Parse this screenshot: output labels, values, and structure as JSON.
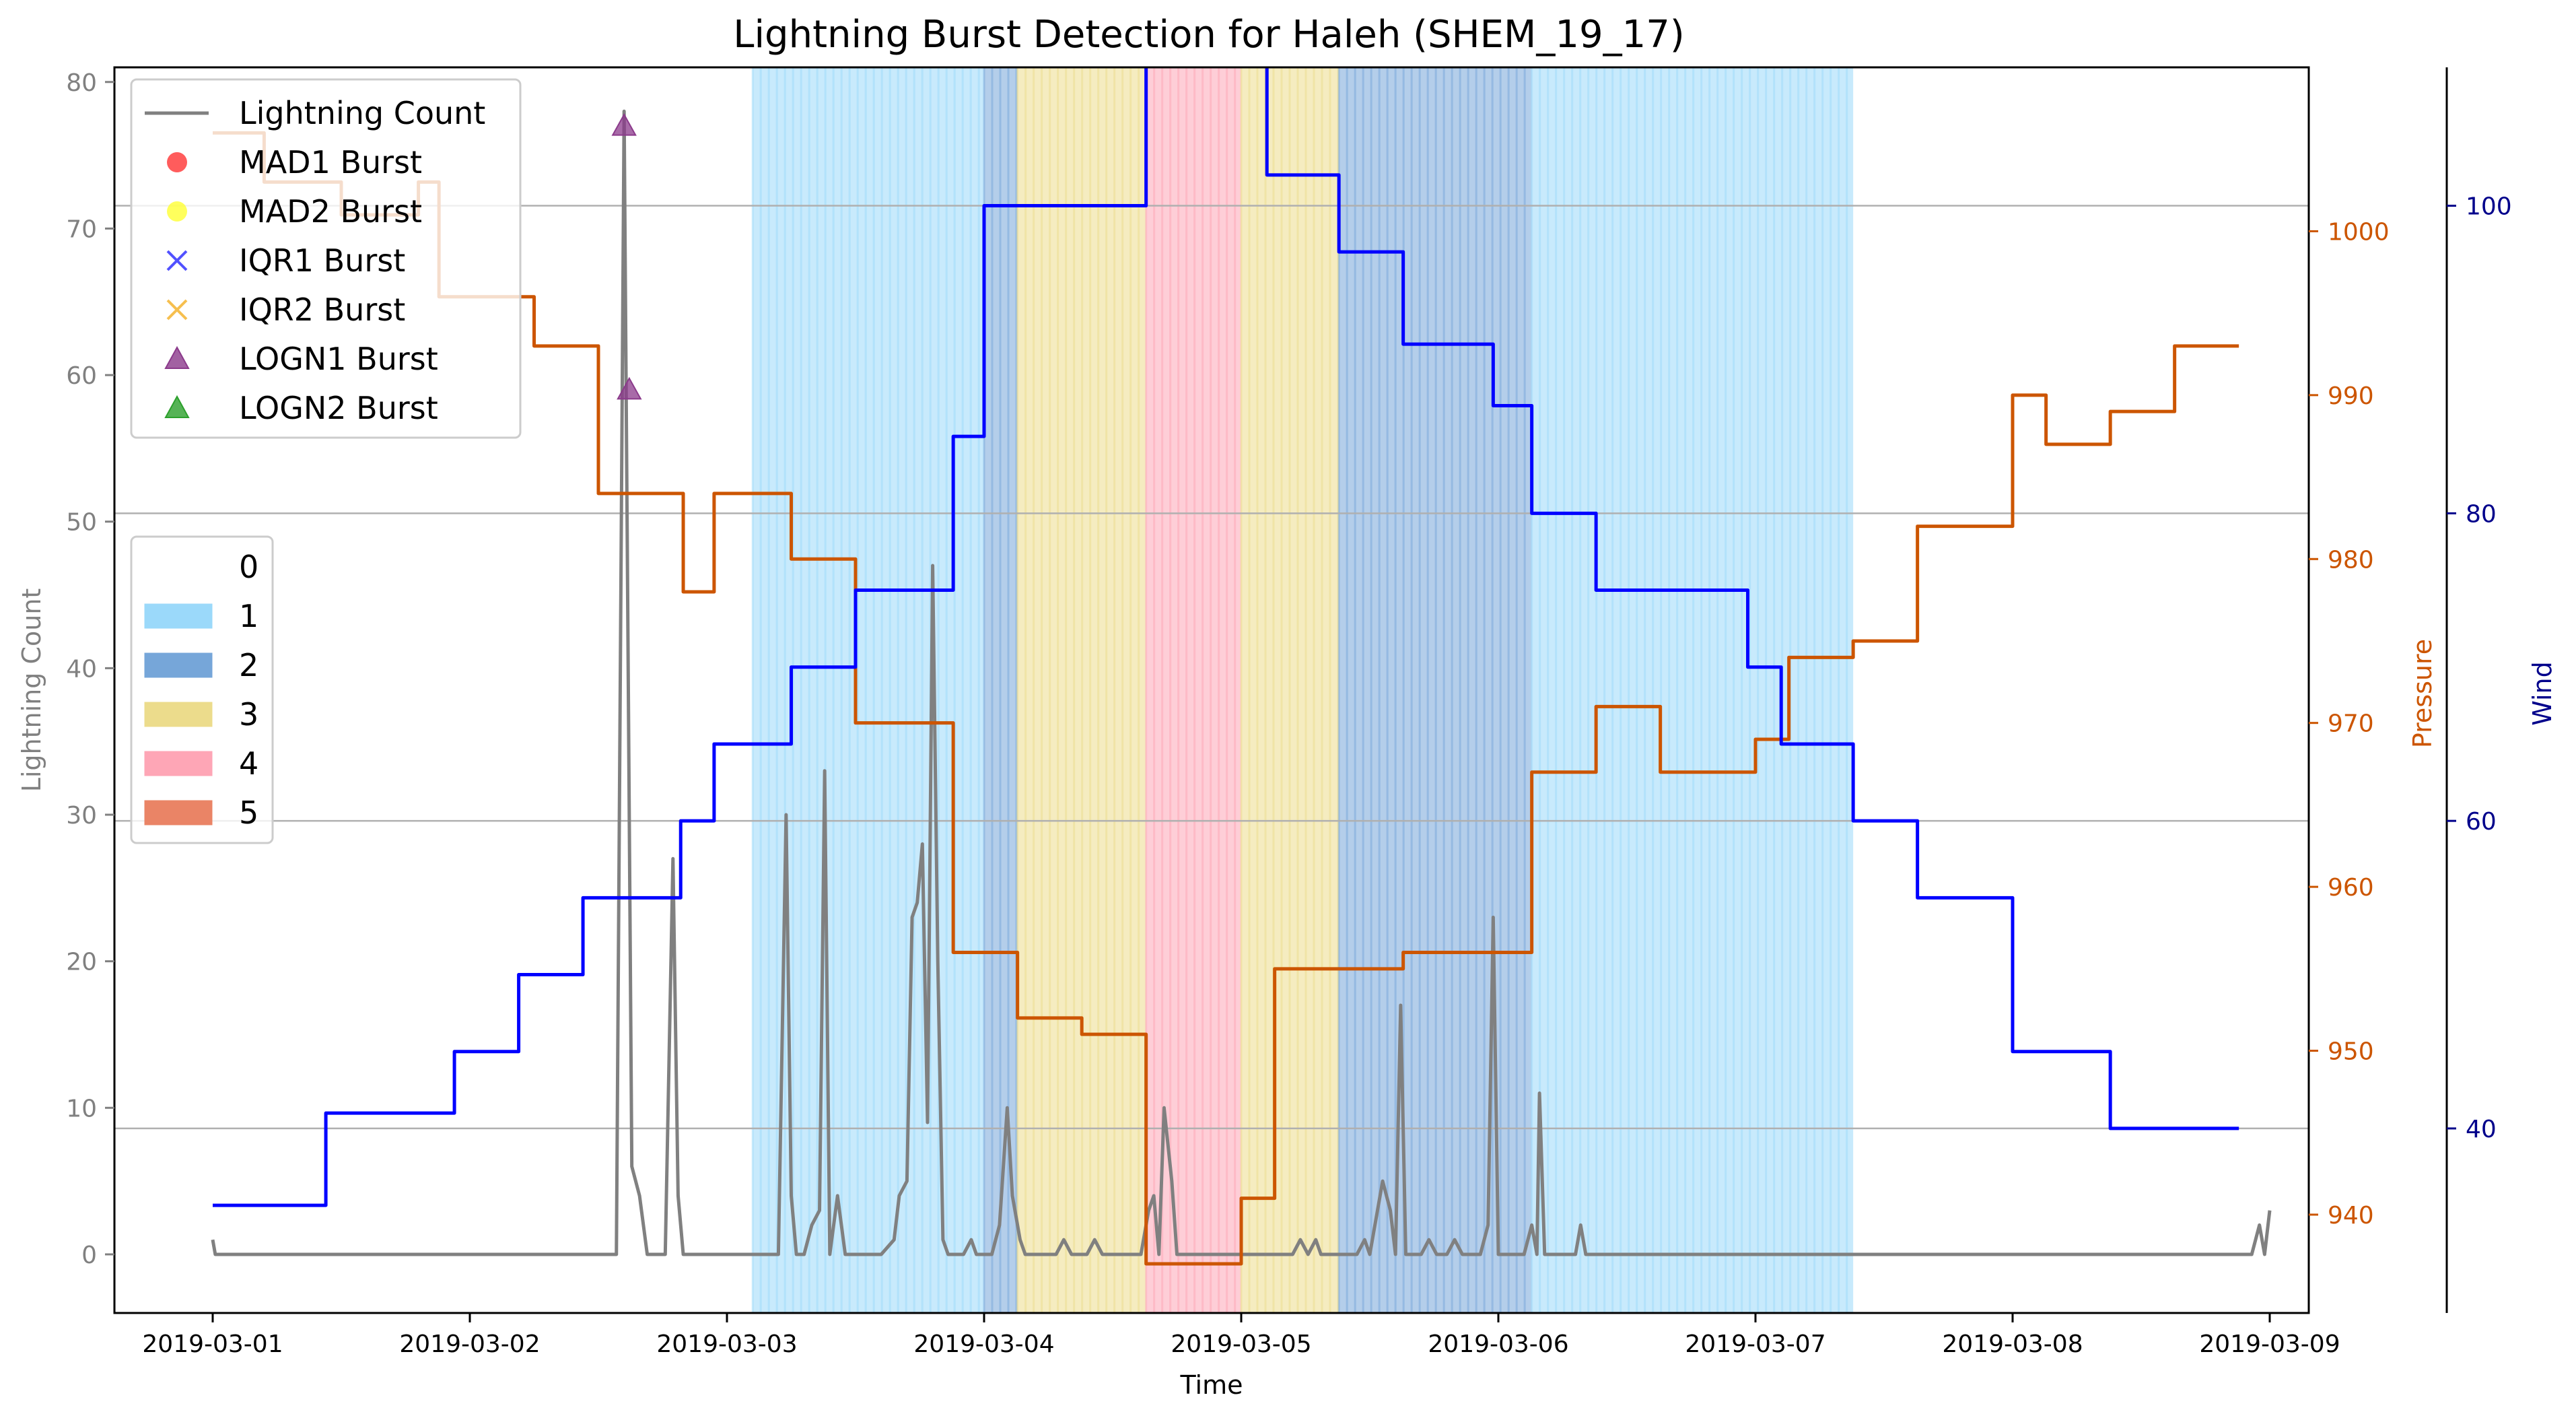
{
  "chart_data": {
    "type": "line",
    "title": "Lightning Burst Detection for Haleh (SHEM_19_17)",
    "xlabel": "Time",
    "x_ticks": [
      "2019-03-01",
      "2019-03-02",
      "2019-03-03",
      "2019-03-04",
      "2019-03-05",
      "2019-03-06",
      "2019-03-07",
      "2019-03-08",
      "2019-03-09"
    ],
    "axes": {
      "left": {
        "label": "Lightning Count",
        "ylim": [
          -4,
          81
        ],
        "ticks": [
          0,
          10,
          20,
          30,
          40,
          50,
          60,
          70,
          80
        ],
        "color": "#808080"
      },
      "pressure": {
        "label": "Pressure",
        "ylim": [
          934,
          1010
        ],
        "ticks": [
          940,
          950,
          960,
          970,
          980,
          990,
          1000
        ],
        "color": "#cc5500"
      },
      "wind": {
        "label": "Wind",
        "ylim": [
          28,
          109
        ],
        "ticks": [
          40,
          60,
          80,
          100
        ],
        "color": "#00008b"
      }
    },
    "grid_wind_levels": [
      40,
      60,
      80,
      100
    ],
    "category_bands": [
      {
        "start": 2.1,
        "end": 3.0,
        "category": 1
      },
      {
        "start": 3.0,
        "end": 3.13,
        "category": 2
      },
      {
        "start": 3.13,
        "end": 3.63,
        "category": 3
      },
      {
        "start": 3.63,
        "end": 4.0,
        "category": 4
      },
      {
        "start": 4.0,
        "end": 4.38,
        "category": 3
      },
      {
        "start": 4.38,
        "end": 5.13,
        "category": 2
      },
      {
        "start": 5.13,
        "end": 6.38,
        "category": 1
      }
    ],
    "category_colors": {
      "1": "#9bd9fa",
      "2": "#76a6d9",
      "3": "#ecdc8c",
      "4": "#fea6b6",
      "5": "#ea8466"
    },
    "legend_categories": {
      "placement": "center-left",
      "items": [
        {
          "label": "0",
          "color": "#ffffff"
        },
        {
          "label": "1",
          "color": "#9bd9fa"
        },
        {
          "label": "2",
          "color": "#76a6d9"
        },
        {
          "label": "3",
          "color": "#ecdc8c"
        },
        {
          "label": "4",
          "color": "#fea6b6"
        },
        {
          "label": "5",
          "color": "#ea8466"
        }
      ]
    },
    "legend_series": {
      "placement": "upper-left",
      "items": [
        {
          "label": "Lightning Count",
          "marker": "line",
          "color": "#808080"
        },
        {
          "label": "MAD1 Burst",
          "marker": "circle",
          "color": "#ff3333"
        },
        {
          "label": "MAD2 Burst",
          "marker": "circle",
          "color": "#ffff33"
        },
        {
          "label": "IQR1 Burst",
          "marker": "x",
          "color": "#3333ff"
        },
        {
          "label": "IQR2 Burst",
          "marker": "x",
          "color": "#f5b430"
        },
        {
          "label": "LOGN1 Burst",
          "marker": "triangle",
          "color": "#8b3a8b"
        },
        {
          "label": "LOGN2 Burst",
          "marker": "triangle",
          "color": "#2ca02c"
        }
      ]
    },
    "series": [
      {
        "id": "lightning",
        "axis": "left",
        "color": "#808080",
        "style": "line",
        "points": [
          [
            0.0,
            1
          ],
          [
            0.01,
            0
          ],
          [
            1.5,
            0
          ],
          [
            1.57,
            0
          ],
          [
            1.6,
            78
          ],
          [
            1.63,
            6
          ],
          [
            1.66,
            4
          ],
          [
            1.69,
            0
          ],
          [
            1.76,
            0
          ],
          [
            1.79,
            27
          ],
          [
            1.81,
            4
          ],
          [
            1.83,
            0
          ],
          [
            2.2,
            0
          ],
          [
            2.23,
            30
          ],
          [
            2.25,
            4
          ],
          [
            2.27,
            0
          ],
          [
            2.3,
            0
          ],
          [
            2.33,
            2
          ],
          [
            2.36,
            3
          ],
          [
            2.38,
            33
          ],
          [
            2.4,
            0
          ],
          [
            2.43,
            4
          ],
          [
            2.46,
            0
          ],
          [
            2.6,
            0
          ],
          [
            2.65,
            1
          ],
          [
            2.67,
            4
          ],
          [
            2.7,
            5
          ],
          [
            2.72,
            23
          ],
          [
            2.74,
            24
          ],
          [
            2.76,
            28
          ],
          [
            2.78,
            9
          ],
          [
            2.8,
            47
          ],
          [
            2.82,
            20
          ],
          [
            2.84,
            1
          ],
          [
            2.86,
            0
          ],
          [
            2.92,
            0
          ],
          [
            2.95,
            1
          ],
          [
            2.97,
            0
          ],
          [
            3.03,
            0
          ],
          [
            3.06,
            2
          ],
          [
            3.09,
            10
          ],
          [
            3.11,
            4
          ],
          [
            3.14,
            1
          ],
          [
            3.16,
            0
          ],
          [
            3.28,
            0
          ],
          [
            3.31,
            1
          ],
          [
            3.34,
            0
          ],
          [
            3.4,
            0
          ],
          [
            3.43,
            1
          ],
          [
            3.46,
            0
          ],
          [
            3.61,
            0
          ],
          [
            3.64,
            3
          ],
          [
            3.66,
            4
          ],
          [
            3.68,
            0
          ],
          [
            3.7,
            10
          ],
          [
            3.73,
            5
          ],
          [
            3.75,
            0
          ],
          [
            4.0,
            0
          ],
          [
            4.2,
            0
          ],
          [
            4.23,
            1
          ],
          [
            4.26,
            0
          ],
          [
            4.29,
            1
          ],
          [
            4.31,
            0
          ],
          [
            4.45,
            0
          ],
          [
            4.48,
            1
          ],
          [
            4.5,
            0
          ],
          [
            4.53,
            3
          ],
          [
            4.55,
            5
          ],
          [
            4.58,
            3
          ],
          [
            4.6,
            0
          ],
          [
            4.62,
            17
          ],
          [
            4.64,
            0
          ],
          [
            4.7,
            0
          ],
          [
            4.73,
            1
          ],
          [
            4.76,
            0
          ],
          [
            4.8,
            0
          ],
          [
            4.83,
            1
          ],
          [
            4.86,
            0
          ],
          [
            4.93,
            0
          ],
          [
            4.96,
            2
          ],
          [
            4.98,
            23
          ],
          [
            5.0,
            0
          ],
          [
            5.1,
            0
          ],
          [
            5.13,
            2
          ],
          [
            5.15,
            0
          ],
          [
            5.16,
            11
          ],
          [
            5.18,
            0
          ],
          [
            5.3,
            0
          ],
          [
            5.32,
            2
          ],
          [
            5.34,
            0
          ],
          [
            7.93,
            0
          ],
          [
            7.96,
            2
          ],
          [
            7.98,
            0
          ],
          [
            8.0,
            3
          ]
        ]
      },
      {
        "id": "pressure",
        "axis": "pressure",
        "color": "#cc5500",
        "style": "step",
        "points": [
          [
            0.0,
            1006
          ],
          [
            0.2,
            1003
          ],
          [
            0.5,
            1001
          ],
          [
            0.8,
            1003
          ],
          [
            0.88,
            996
          ],
          [
            1.25,
            993
          ],
          [
            1.5,
            984
          ],
          [
            1.83,
            978
          ],
          [
            1.95,
            984
          ],
          [
            2.25,
            980
          ],
          [
            2.5,
            970
          ],
          [
            2.88,
            956
          ],
          [
            3.13,
            952
          ],
          [
            3.38,
            951
          ],
          [
            3.63,
            937
          ],
          [
            4.0,
            941
          ],
          [
            4.13,
            955
          ],
          [
            4.63,
            956
          ],
          [
            5.13,
            967
          ],
          [
            5.38,
            971
          ],
          [
            5.63,
            967
          ],
          [
            6.0,
            969
          ],
          [
            6.13,
            974
          ],
          [
            6.38,
            975
          ],
          [
            6.63,
            982
          ],
          [
            7.0,
            990
          ],
          [
            7.13,
            987
          ],
          [
            7.38,
            989
          ],
          [
            7.63,
            993
          ],
          [
            7.88,
            993
          ]
        ]
      },
      {
        "id": "wind",
        "axis": "wind",
        "color": "#0000ff",
        "style": "step",
        "points": [
          [
            0.0,
            35
          ],
          [
            0.44,
            41
          ],
          [
            0.94,
            45
          ],
          [
            1.19,
            50
          ],
          [
            1.44,
            55
          ],
          [
            1.82,
            60
          ],
          [
            1.95,
            65
          ],
          [
            2.25,
            70
          ],
          [
            2.5,
            75
          ],
          [
            2.88,
            85
          ],
          [
            3.0,
            100
          ],
          [
            3.63,
            115
          ],
          [
            3.98,
            110
          ],
          [
            4.1,
            102
          ],
          [
            4.38,
            97
          ],
          [
            4.63,
            91
          ],
          [
            4.98,
            87
          ],
          [
            5.13,
            80
          ],
          [
            5.38,
            75
          ],
          [
            5.97,
            70
          ],
          [
            6.1,
            65
          ],
          [
            6.38,
            60
          ],
          [
            6.63,
            55
          ],
          [
            7.0,
            45
          ],
          [
            7.38,
            40
          ],
          [
            7.88,
            40
          ]
        ]
      }
    ],
    "bursts": [
      {
        "type": "LOGN1",
        "x": 1.6,
        "y": 77,
        "color": "#8b3a8b"
      },
      {
        "type": "LOGN1",
        "x": 1.62,
        "y": 59,
        "color": "#8b3a8b"
      }
    ]
  }
}
